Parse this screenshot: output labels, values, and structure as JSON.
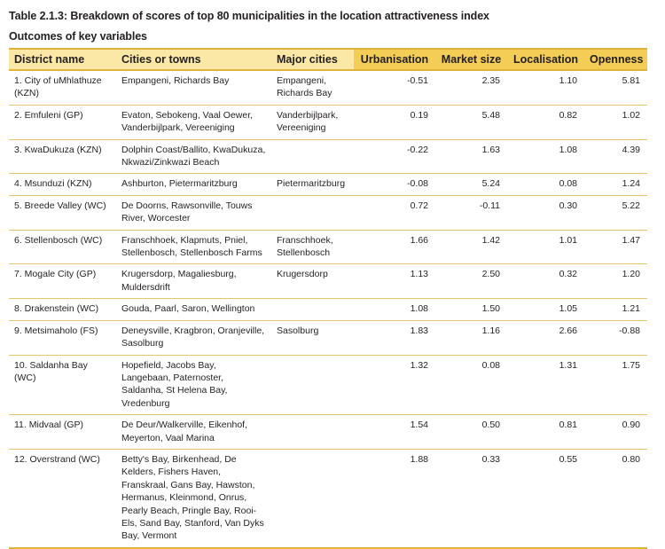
{
  "title": "Table 2.1.3: Breakdown of scores of top 80 municipalities in the location attractiveness index",
  "subtitle": "Outcomes of key variables",
  "colors": {
    "header_light": "#fbe8a6",
    "header_dark": "#f3cd56",
    "rule": "#e0b43a"
  },
  "headers": {
    "district": "District name",
    "towns": "Cities or towns",
    "major": "Major cities",
    "urbanisation": "Urbanisation",
    "market": "Market size",
    "localisation": "Localisation",
    "openness": "Openness"
  },
  "rows": [
    {
      "district": "1. City of uMhlathuze (KZN)",
      "towns": "Empangeni, Richards Bay",
      "major": "Empangeni, Richards Bay",
      "urbanisation": "-0.51",
      "market": "2.35",
      "localisation": "1.10",
      "openness": "5.81"
    },
    {
      "district": "2. Emfuleni (GP)",
      "towns": "Evaton, Sebokeng, Vaal Oewer, Vanderbijlpark, Vereeniging",
      "major": "Vanderbijlpark, Vereeniging",
      "urbanisation": "0.19",
      "market": "5.48",
      "localisation": "0.82",
      "openness": "1.02"
    },
    {
      "district": "3. KwaDukuza (KZN)",
      "towns": "Dolphin Coast/Ballito, KwaDukuza, Nkwazi/Zinkwazi Beach",
      "major": "",
      "urbanisation": "-0.22",
      "market": "1.63",
      "localisation": "1.08",
      "openness": "4.39"
    },
    {
      "district": "4. Msunduzi (KZN)",
      "towns": "Ashburton, Pietermaritzburg",
      "major": "Pietermaritzburg",
      "urbanisation": "-0.08",
      "market": "5.24",
      "localisation": "0.08",
      "openness": "1.24"
    },
    {
      "district": "5. Breede Valley (WC)",
      "towns": "De Doorns, Rawsonville, Touws River, Worcester",
      "major": "",
      "urbanisation": "0.72",
      "market": "-0.11",
      "localisation": "0.30",
      "openness": "5.22"
    },
    {
      "district": "6. Stellenbosch (WC)",
      "towns": "Franschhoek, Klapmuts, Pniel, Stellenbosch, Stellenbosch Farms",
      "major": "Franschhoek, Stellenbosch",
      "urbanisation": "1.66",
      "market": "1.42",
      "localisation": "1.01",
      "openness": "1.47"
    },
    {
      "district": "7. Mogale City (GP)",
      "towns": "Krugersdorp, Magaliesburg, Muldersdrift",
      "major": "Krugersdorp",
      "urbanisation": "1.13",
      "market": "2.50",
      "localisation": "0.32",
      "openness": "1.20"
    },
    {
      "district": "8. Drakenstein (WC)",
      "towns": "Gouda, Paarl, Saron, Wellington",
      "major": "",
      "urbanisation": "1.08",
      "market": "1.50",
      "localisation": "1.05",
      "openness": "1.21"
    },
    {
      "district": "9. Metsimaholo (FS)",
      "towns": "Deneysville, Kragbron, Oranjeville, Sasolburg",
      "major": "Sasolburg",
      "urbanisation": "1.83",
      "market": "1.16",
      "localisation": "2.66",
      "openness": "-0.88"
    },
    {
      "district": "10. Saldanha Bay (WC)",
      "towns": "Hopefield, Jacobs Bay, Langebaan, Paternoster, Saldanha, St Helena Bay, Vredenburg",
      "major": "",
      "urbanisation": "1.32",
      "market": "0.08",
      "localisation": "1.31",
      "openness": "1.75"
    },
    {
      "district": "11. Midvaal (GP)",
      "towns": "De Deur/Walkerville, Eikenhof, Meyerton, Vaal Marina",
      "major": "",
      "urbanisation": "1.54",
      "market": "0.50",
      "localisation": "0.81",
      "openness": "0.90"
    },
    {
      "district": "12. Overstrand (WC)",
      "towns": "Betty's Bay, Birkenhead, De Kelders, Fishers Haven, Franskraal, Gans Bay, Hawston, Hermanus, Kleinmond, Onrus, Pearly Beach, Pringle Bay, Rooi-Els, Sand Bay, Stanford, Van Dyks Bay, Vermont",
      "major": "",
      "urbanisation": "1.88",
      "market": "0.33",
      "localisation": "0.55",
      "openness": "0.80"
    }
  ]
}
